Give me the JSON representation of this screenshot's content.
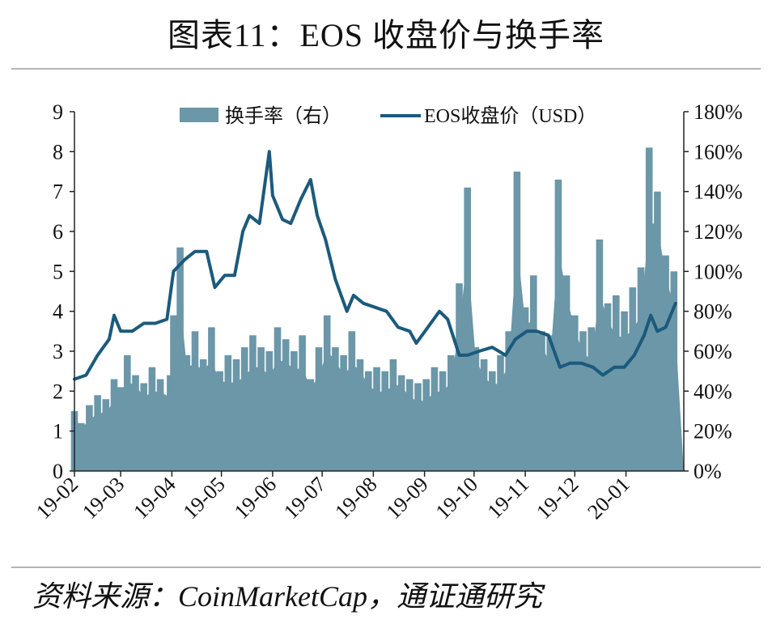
{
  "title": "图表11：EOS 收盘价与换手率",
  "source": "资料来源：CoinMarketCap，通证通研究",
  "chart_data": {
    "type": "bar",
    "combo": "bar + line (dual axis)",
    "x_tick_labels": [
      "19-02",
      "19-03",
      "19-04",
      "19-05",
      "19-06",
      "19-07",
      "19-08",
      "19-09",
      "19-10",
      "19-11",
      "19-12",
      "20-01"
    ],
    "y_left": {
      "ticks": [
        "0",
        "1",
        "2",
        "3",
        "4",
        "5",
        "6",
        "7",
        "8",
        "9"
      ],
      "range": [
        0,
        9
      ]
    },
    "y_right": {
      "ticks": [
        "0%",
        "20%",
        "40%",
        "60%",
        "80%",
        "100%",
        "120%",
        "140%",
        "160%",
        "180%"
      ],
      "range": [
        0,
        180
      ]
    },
    "legend_position": "top",
    "colors": {
      "bars": "#6b97a8",
      "line": "#1b5a7c"
    },
    "series": [
      {
        "name": "换手率（右）",
        "type": "bar",
        "axis": "right",
        "unit": "%",
        "points": [
          [
            "2019-02-01",
            30
          ],
          [
            "2019-02-05",
            24
          ],
          [
            "2019-02-10",
            33
          ],
          [
            "2019-02-15",
            38
          ],
          [
            "2019-02-20",
            36
          ],
          [
            "2019-02-25",
            46
          ],
          [
            "2019-03-01",
            42
          ],
          [
            "2019-03-05",
            58
          ],
          [
            "2019-03-10",
            48
          ],
          [
            "2019-03-15",
            44
          ],
          [
            "2019-03-20",
            52
          ],
          [
            "2019-03-25",
            46
          ],
          [
            "2019-03-31",
            48
          ],
          [
            "2019-04-02",
            78
          ],
          [
            "2019-04-06",
            112
          ],
          [
            "2019-04-10",
            58
          ],
          [
            "2019-04-15",
            70
          ],
          [
            "2019-04-20",
            56
          ],
          [
            "2019-04-25",
            72
          ],
          [
            "2019-04-30",
            50
          ],
          [
            "2019-05-05",
            58
          ],
          [
            "2019-05-10",
            56
          ],
          [
            "2019-05-15",
            62
          ],
          [
            "2019-05-20",
            68
          ],
          [
            "2019-05-25",
            62
          ],
          [
            "2019-05-30",
            60
          ],
          [
            "2019-06-04",
            72
          ],
          [
            "2019-06-09",
            66
          ],
          [
            "2019-06-14",
            60
          ],
          [
            "2019-06-19",
            68
          ],
          [
            "2019-06-24",
            46
          ],
          [
            "2019-06-29",
            62
          ],
          [
            "2019-07-04",
            78
          ],
          [
            "2019-07-09",
            62
          ],
          [
            "2019-07-14",
            58
          ],
          [
            "2019-07-19",
            70
          ],
          [
            "2019-07-24",
            56
          ],
          [
            "2019-07-29",
            50
          ],
          [
            "2019-08-03",
            52
          ],
          [
            "2019-08-08",
            50
          ],
          [
            "2019-08-13",
            56
          ],
          [
            "2019-08-18",
            48
          ],
          [
            "2019-08-23",
            46
          ],
          [
            "2019-08-28",
            44
          ],
          [
            "2019-09-02",
            46
          ],
          [
            "2019-09-07",
            52
          ],
          [
            "2019-09-12",
            50
          ],
          [
            "2019-09-17",
            58
          ],
          [
            "2019-09-22",
            94
          ],
          [
            "2019-09-27",
            142
          ],
          [
            "2019-10-02",
            62
          ],
          [
            "2019-10-07",
            56
          ],
          [
            "2019-10-12",
            50
          ],
          [
            "2019-10-17",
            58
          ],
          [
            "2019-10-22",
            70
          ],
          [
            "2019-10-27",
            150
          ],
          [
            "2019-11-01",
            82
          ],
          [
            "2019-11-06",
            98
          ],
          [
            "2019-11-11",
            70
          ],
          [
            "2019-11-16",
            68
          ],
          [
            "2019-11-21",
            146
          ],
          [
            "2019-11-26",
            98
          ],
          [
            "2019-12-01",
            78
          ],
          [
            "2019-12-06",
            70
          ],
          [
            "2019-12-11",
            72
          ],
          [
            "2019-12-16",
            116
          ],
          [
            "2019-12-21",
            84
          ],
          [
            "2019-12-26",
            88
          ],
          [
            "2019-12-31",
            80
          ],
          [
            "2020-01-05",
            92
          ],
          [
            "2020-01-10",
            102
          ],
          [
            "2020-01-15",
            162
          ],
          [
            "2020-01-20",
            140
          ],
          [
            "2020-01-25",
            108
          ],
          [
            "2020-01-30",
            100
          ]
        ]
      },
      {
        "name": "EOS收盘价（USD）",
        "type": "line",
        "axis": "left",
        "unit": "USD",
        "points": [
          [
            "2019-02-01",
            2.3
          ],
          [
            "2019-02-08",
            2.4
          ],
          [
            "2019-02-15",
            2.9
          ],
          [
            "2019-02-22",
            3.3
          ],
          [
            "2019-02-25",
            3.9
          ],
          [
            "2019-03-01",
            3.5
          ],
          [
            "2019-03-08",
            3.5
          ],
          [
            "2019-03-15",
            3.7
          ],
          [
            "2019-03-22",
            3.7
          ],
          [
            "2019-03-29",
            3.8
          ],
          [
            "2019-04-02",
            5.0
          ],
          [
            "2019-04-09",
            5.3
          ],
          [
            "2019-04-15",
            5.5
          ],
          [
            "2019-04-22",
            5.5
          ],
          [
            "2019-04-27",
            4.6
          ],
          [
            "2019-05-03",
            4.9
          ],
          [
            "2019-05-09",
            4.9
          ],
          [
            "2019-05-14",
            6.0
          ],
          [
            "2019-05-18",
            6.4
          ],
          [
            "2019-05-24",
            6.2
          ],
          [
            "2019-05-30",
            8.0
          ],
          [
            "2019-06-01",
            6.9
          ],
          [
            "2019-06-07",
            6.3
          ],
          [
            "2019-06-12",
            6.2
          ],
          [
            "2019-06-18",
            6.8
          ],
          [
            "2019-06-24",
            7.3
          ],
          [
            "2019-06-28",
            6.4
          ],
          [
            "2019-07-03",
            5.8
          ],
          [
            "2019-07-09",
            4.8
          ],
          [
            "2019-07-16",
            4.0
          ],
          [
            "2019-07-20",
            4.4
          ],
          [
            "2019-07-26",
            4.2
          ],
          [
            "2019-08-02",
            4.1
          ],
          [
            "2019-08-09",
            4.0
          ],
          [
            "2019-08-16",
            3.6
          ],
          [
            "2019-08-23",
            3.5
          ],
          [
            "2019-08-27",
            3.2
          ],
          [
            "2019-09-03",
            3.6
          ],
          [
            "2019-09-10",
            4.0
          ],
          [
            "2019-09-15",
            3.8
          ],
          [
            "2019-09-22",
            2.9
          ],
          [
            "2019-09-27",
            2.9
          ],
          [
            "2019-10-04",
            3.0
          ],
          [
            "2019-10-12",
            3.1
          ],
          [
            "2019-10-20",
            2.9
          ],
          [
            "2019-10-26",
            3.3
          ],
          [
            "2019-11-02",
            3.5
          ],
          [
            "2019-11-08",
            3.5
          ],
          [
            "2019-11-15",
            3.4
          ],
          [
            "2019-11-22",
            2.6
          ],
          [
            "2019-11-28",
            2.7
          ],
          [
            "2019-12-05",
            2.7
          ],
          [
            "2019-12-12",
            2.6
          ],
          [
            "2019-12-18",
            2.4
          ],
          [
            "2019-12-25",
            2.6
          ],
          [
            "2019-12-31",
            2.6
          ],
          [
            "2020-01-06",
            2.9
          ],
          [
            "2020-01-12",
            3.4
          ],
          [
            "2020-01-16",
            3.9
          ],
          [
            "2020-01-20",
            3.5
          ],
          [
            "2020-01-25",
            3.6
          ],
          [
            "2020-01-31",
            4.2
          ]
        ]
      }
    ]
  }
}
